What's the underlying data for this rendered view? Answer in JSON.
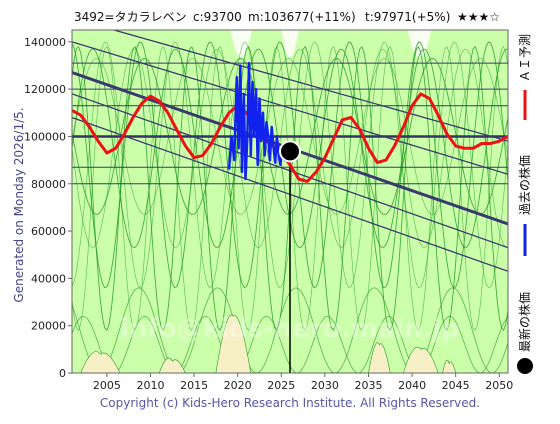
{
  "header": {
    "ticker": "3492=タカラレベン",
    "current": "c:93700",
    "median": "m:103677(+11%)",
    "target": "t:97971(+5%)",
    "rating": "★★★☆"
  },
  "side": {
    "generated": "Generated on Monday 2026/1/5.",
    "legend_ai": "ＡＩ予測",
    "legend_past": "過去の株価",
    "legend_latest": "最新の株価"
  },
  "footer": {
    "copyright": "Copyright (c) Kids-Hero Research Institute. All Rights Reserved."
  },
  "watermark": "info@kids-hero.main.jp",
  "colors": {
    "plot_bg": "#ccffaa",
    "predict_line": "#ee1111",
    "past_line": "#1122ee",
    "trend_line": "#3a3a6e",
    "thin_green": "#229922",
    "sand": "#f7f0c6",
    "latest_dot": "#000000"
  },
  "chart_data": {
    "type": "line",
    "xlim": [
      2001,
      2051
    ],
    "ylim": [
      0,
      145000
    ],
    "x_ticks": [
      2005,
      2010,
      2015,
      2020,
      2025,
      2030,
      2035,
      2040,
      2045,
      2050
    ],
    "y_ticks": [
      0,
      20000,
      40000,
      60000,
      80000,
      100000,
      120000,
      140000
    ],
    "y_tick_labels": [
      "0",
      "20000",
      "40000",
      "60000",
      "80000",
      "100000",
      "120000",
      "140000"
    ],
    "latest": {
      "x": 2026.0,
      "y": 93700
    },
    "past_price": {
      "x": [
        2019.0,
        2019.3,
        2019.6,
        2019.9,
        2020.1,
        2020.3,
        2020.5,
        2020.7,
        2020.9,
        2021.1,
        2021.3,
        2021.5,
        2021.7,
        2021.9,
        2022.1,
        2022.3,
        2022.5,
        2022.7,
        2022.9,
        2023.1,
        2023.3,
        2023.5,
        2023.7,
        2023.9,
        2024.1,
        2024.3,
        2024.5,
        2024.7,
        2024.9,
        2025.1,
        2025.4,
        2025.7
      ],
      "y": [
        86000,
        100000,
        90000,
        125000,
        95000,
        130000,
        85000,
        118000,
        82000,
        99000,
        131000,
        92000,
        123000,
        100000,
        120000,
        88000,
        116000,
        98000,
        110000,
        92000,
        106000,
        100000,
        90000,
        104000,
        96000,
        89000,
        100000,
        92000,
        88000,
        95000,
        90000,
        93700
      ]
    },
    "ai_prediction": {
      "x": [
        2001,
        2002,
        2003,
        2004,
        2005,
        2006,
        2007,
        2008,
        2009,
        2010,
        2011,
        2012,
        2013,
        2014,
        2015,
        2016,
        2017,
        2018,
        2019,
        2020,
        2021,
        2022,
        2023,
        2024,
        2025,
        2026,
        2027,
        2028,
        2029,
        2030,
        2031,
        2032,
        2033,
        2034,
        2035,
        2036,
        2037,
        2038,
        2039,
        2040,
        2041,
        2042,
        2043,
        2044,
        2045,
        2046,
        2047,
        2048,
        2049,
        2050,
        2051
      ],
      "y": [
        111000,
        109000,
        104000,
        98000,
        93000,
        95000,
        101000,
        108000,
        114000,
        117000,
        115000,
        110000,
        103000,
        96000,
        91000,
        92000,
        97000,
        104000,
        110000,
        113000,
        110000,
        104000,
        99000,
        96000,
        93000,
        88000,
        82000,
        81000,
        85000,
        91000,
        99000,
        107000,
        108000,
        103000,
        95000,
        89000,
        90000,
        96000,
        104000,
        113000,
        118000,
        116000,
        109000,
        101000,
        96000,
        95000,
        95000,
        97000,
        97000,
        98000,
        100000
      ]
    },
    "trend_lines": [
      {
        "x": [
          2001,
          2051
        ],
        "y": [
          127000,
          63000
        ]
      },
      {
        "x": [
          2001,
          2051
        ],
        "y": [
          150000,
          98000
        ]
      },
      {
        "x": [
          2001,
          2051
        ],
        "y": [
          108000,
          43000
        ]
      },
      {
        "x": [
          2001,
          2051
        ],
        "y": [
          140000,
          84000
        ]
      },
      {
        "x": [
          2001,
          2051
        ],
        "y": [
          118000,
          53000
        ]
      }
    ],
    "horizontal_levels": [
      131000,
      120000,
      113000,
      87000,
      80000
    ],
    "thick_level": 100000,
    "wave_bands": [
      {
        "period": 9.5,
        "phase": 0.0,
        "mid": 95000,
        "amp": 42000
      },
      {
        "period": 8.0,
        "phase": 1.7,
        "mid": 88000,
        "amp": 52000
      },
      {
        "period": 11.0,
        "phase": 3.1,
        "mid": 100000,
        "amp": 33000
      },
      {
        "period": 6.5,
        "phase": 0.9,
        "mid": 78000,
        "amp": 60000
      }
    ],
    "lower_bands": [
      {
        "period": 9.0,
        "phase": 2.5,
        "mid": 18000,
        "amp": 18000
      },
      {
        "period": 7.0,
        "phase": 0.4,
        "mid": 12000,
        "amp": 12000
      }
    ],
    "sand_patches": [
      {
        "x0": 2002.0,
        "x1": 2006.5,
        "peak": 8000
      },
      {
        "x0": 2011.0,
        "x1": 2014.0,
        "peak": 5000
      },
      {
        "x0": 2017.5,
        "x1": 2021.5,
        "peak": 24000
      },
      {
        "x0": 2035.0,
        "x1": 2037.5,
        "peak": 12000
      },
      {
        "x0": 2039.0,
        "x1": 2043.0,
        "peak": 10000
      },
      {
        "x0": 2043.5,
        "x1": 2045.0,
        "peak": 4000
      }
    ],
    "top_white_patches": [
      {
        "x0": 2019.2,
        "x1": 2021.6
      },
      {
        "x0": 2025.0,
        "x1": 2027.0
      },
      {
        "x0": 2039.5,
        "x1": 2042.2
      }
    ]
  }
}
